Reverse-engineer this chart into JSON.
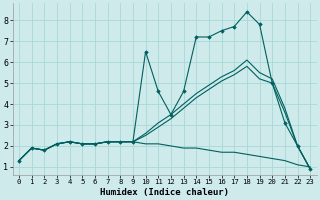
{
  "xlabel": "Humidex (Indice chaleur)",
  "bg_color": "#ceeaea",
  "line_color": "#006060",
  "grid_color": "#aad8d8",
  "x_values": [
    0,
    1,
    2,
    3,
    4,
    5,
    6,
    7,
    8,
    9,
    10,
    11,
    12,
    13,
    14,
    15,
    16,
    17,
    18,
    19,
    20,
    21,
    22,
    23
  ],
  "line1_y": [
    1.3,
    1.9,
    1.8,
    2.1,
    2.2,
    2.1,
    2.1,
    2.2,
    2.2,
    2.2,
    6.5,
    4.6,
    3.5,
    4.6,
    7.2,
    7.2,
    7.5,
    7.7,
    8.4,
    7.8,
    5.0,
    3.1,
    2.0,
    0.9
  ],
  "line2_y": [
    1.3,
    1.9,
    1.8,
    2.1,
    2.2,
    2.1,
    2.1,
    2.2,
    2.2,
    2.2,
    2.1,
    2.1,
    2.0,
    1.9,
    1.9,
    1.8,
    1.7,
    1.7,
    1.6,
    1.5,
    1.4,
    1.3,
    1.1,
    1.0
  ],
  "line3_y": [
    1.3,
    1.9,
    1.8,
    2.1,
    2.2,
    2.1,
    2.1,
    2.2,
    2.2,
    2.2,
    2.6,
    3.1,
    3.5,
    4.0,
    4.5,
    4.9,
    5.3,
    5.6,
    6.1,
    5.5,
    5.2,
    3.8,
    2.0,
    0.9
  ],
  "line4_y": [
    1.3,
    1.9,
    1.8,
    2.1,
    2.2,
    2.1,
    2.1,
    2.2,
    2.2,
    2.2,
    2.5,
    2.9,
    3.3,
    3.8,
    4.3,
    4.7,
    5.1,
    5.4,
    5.8,
    5.2,
    5.0,
    3.6,
    2.0,
    0.9
  ],
  "ylim": [
    0.6,
    8.8
  ],
  "yticks": [
    1,
    2,
    3,
    4,
    5,
    6,
    7,
    8
  ],
  "xlim": [
    -0.5,
    23.5
  ]
}
